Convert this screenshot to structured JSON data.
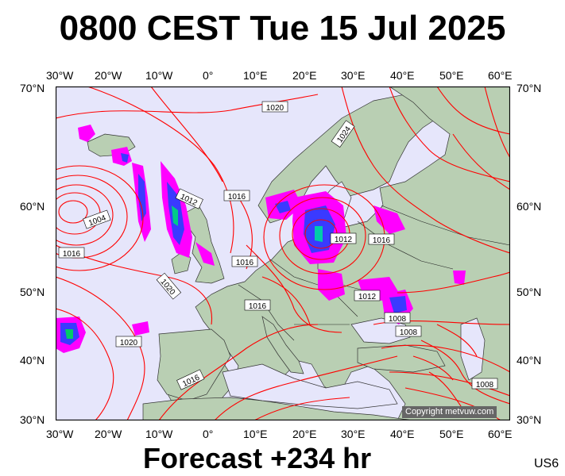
{
  "title": "0800 CEST Tue 15 Jul 2025",
  "footer": "Forecast +234 hr",
  "product_code": "US6",
  "copyright": "Copyright metvuw.com",
  "axes": {
    "lon_labels": [
      "30°W",
      "20°W",
      "10°W",
      "0°",
      "10°E",
      "20°E",
      "30°E",
      "40°E",
      "50°E",
      "60°E"
    ],
    "lat_labels": [
      "70°N",
      "60°N",
      "50°N",
      "40°N",
      "30°N"
    ]
  },
  "isobar_labels": [
    "1020",
    "1024",
    "1012",
    "1016",
    "1004",
    "1016",
    "1016",
    "1020",
    "1012",
    "1016",
    "1016",
    "1012",
    "1008",
    "1008",
    "1020",
    "1016",
    "1008"
  ],
  "colors": {
    "isobar": "#ff0000",
    "sea": "#e6e6fb",
    "land": "#b9cfb3",
    "precip_light": "#ff00ff",
    "precip_mid": "#3a3aff"
  }
}
